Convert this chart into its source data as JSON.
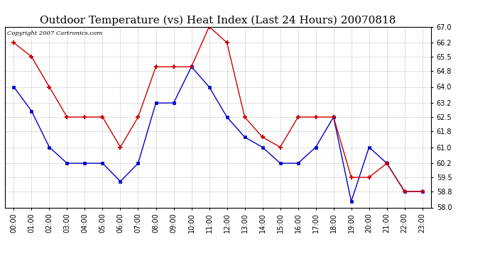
{
  "title": "Outdoor Temperature (vs) Heat Index (Last 24 Hours) 20070818",
  "copyright_text": "Copyright 2007 Cartronics.com",
  "hours": [
    "00:00",
    "01:00",
    "02:00",
    "03:00",
    "04:00",
    "05:00",
    "06:00",
    "07:00",
    "08:00",
    "09:00",
    "10:00",
    "11:00",
    "12:00",
    "13:00",
    "14:00",
    "15:00",
    "16:00",
    "17:00",
    "18:00",
    "19:00",
    "20:00",
    "21:00",
    "22:00",
    "23:00"
  ],
  "temp_blue": [
    64.0,
    62.8,
    61.0,
    60.2,
    60.2,
    60.2,
    59.3,
    60.2,
    63.2,
    63.2,
    65.0,
    64.0,
    62.5,
    61.5,
    61.0,
    60.2,
    60.2,
    61.0,
    62.5,
    58.3,
    61.0,
    60.2,
    58.8,
    58.8
  ],
  "heat_red": [
    66.2,
    65.5,
    64.0,
    62.5,
    62.5,
    62.5,
    61.0,
    62.5,
    65.0,
    65.0,
    65.0,
    67.0,
    66.2,
    62.5,
    61.5,
    61.0,
    62.5,
    62.5,
    62.5,
    59.5,
    59.5,
    60.2,
    58.8,
    58.8
  ],
  "ylim_min": 58.0,
  "ylim_max": 67.0,
  "yticks": [
    58.0,
    58.8,
    59.5,
    60.2,
    61.0,
    61.8,
    62.5,
    63.2,
    64.0,
    64.8,
    65.5,
    66.2,
    67.0
  ],
  "blue_color": "#0000cc",
  "red_color": "#cc0000",
  "bg_color": "#ffffff",
  "grid_color": "#aaaaaa",
  "title_fontsize": 11,
  "tick_fontsize": 7,
  "copyright_fontsize": 6
}
